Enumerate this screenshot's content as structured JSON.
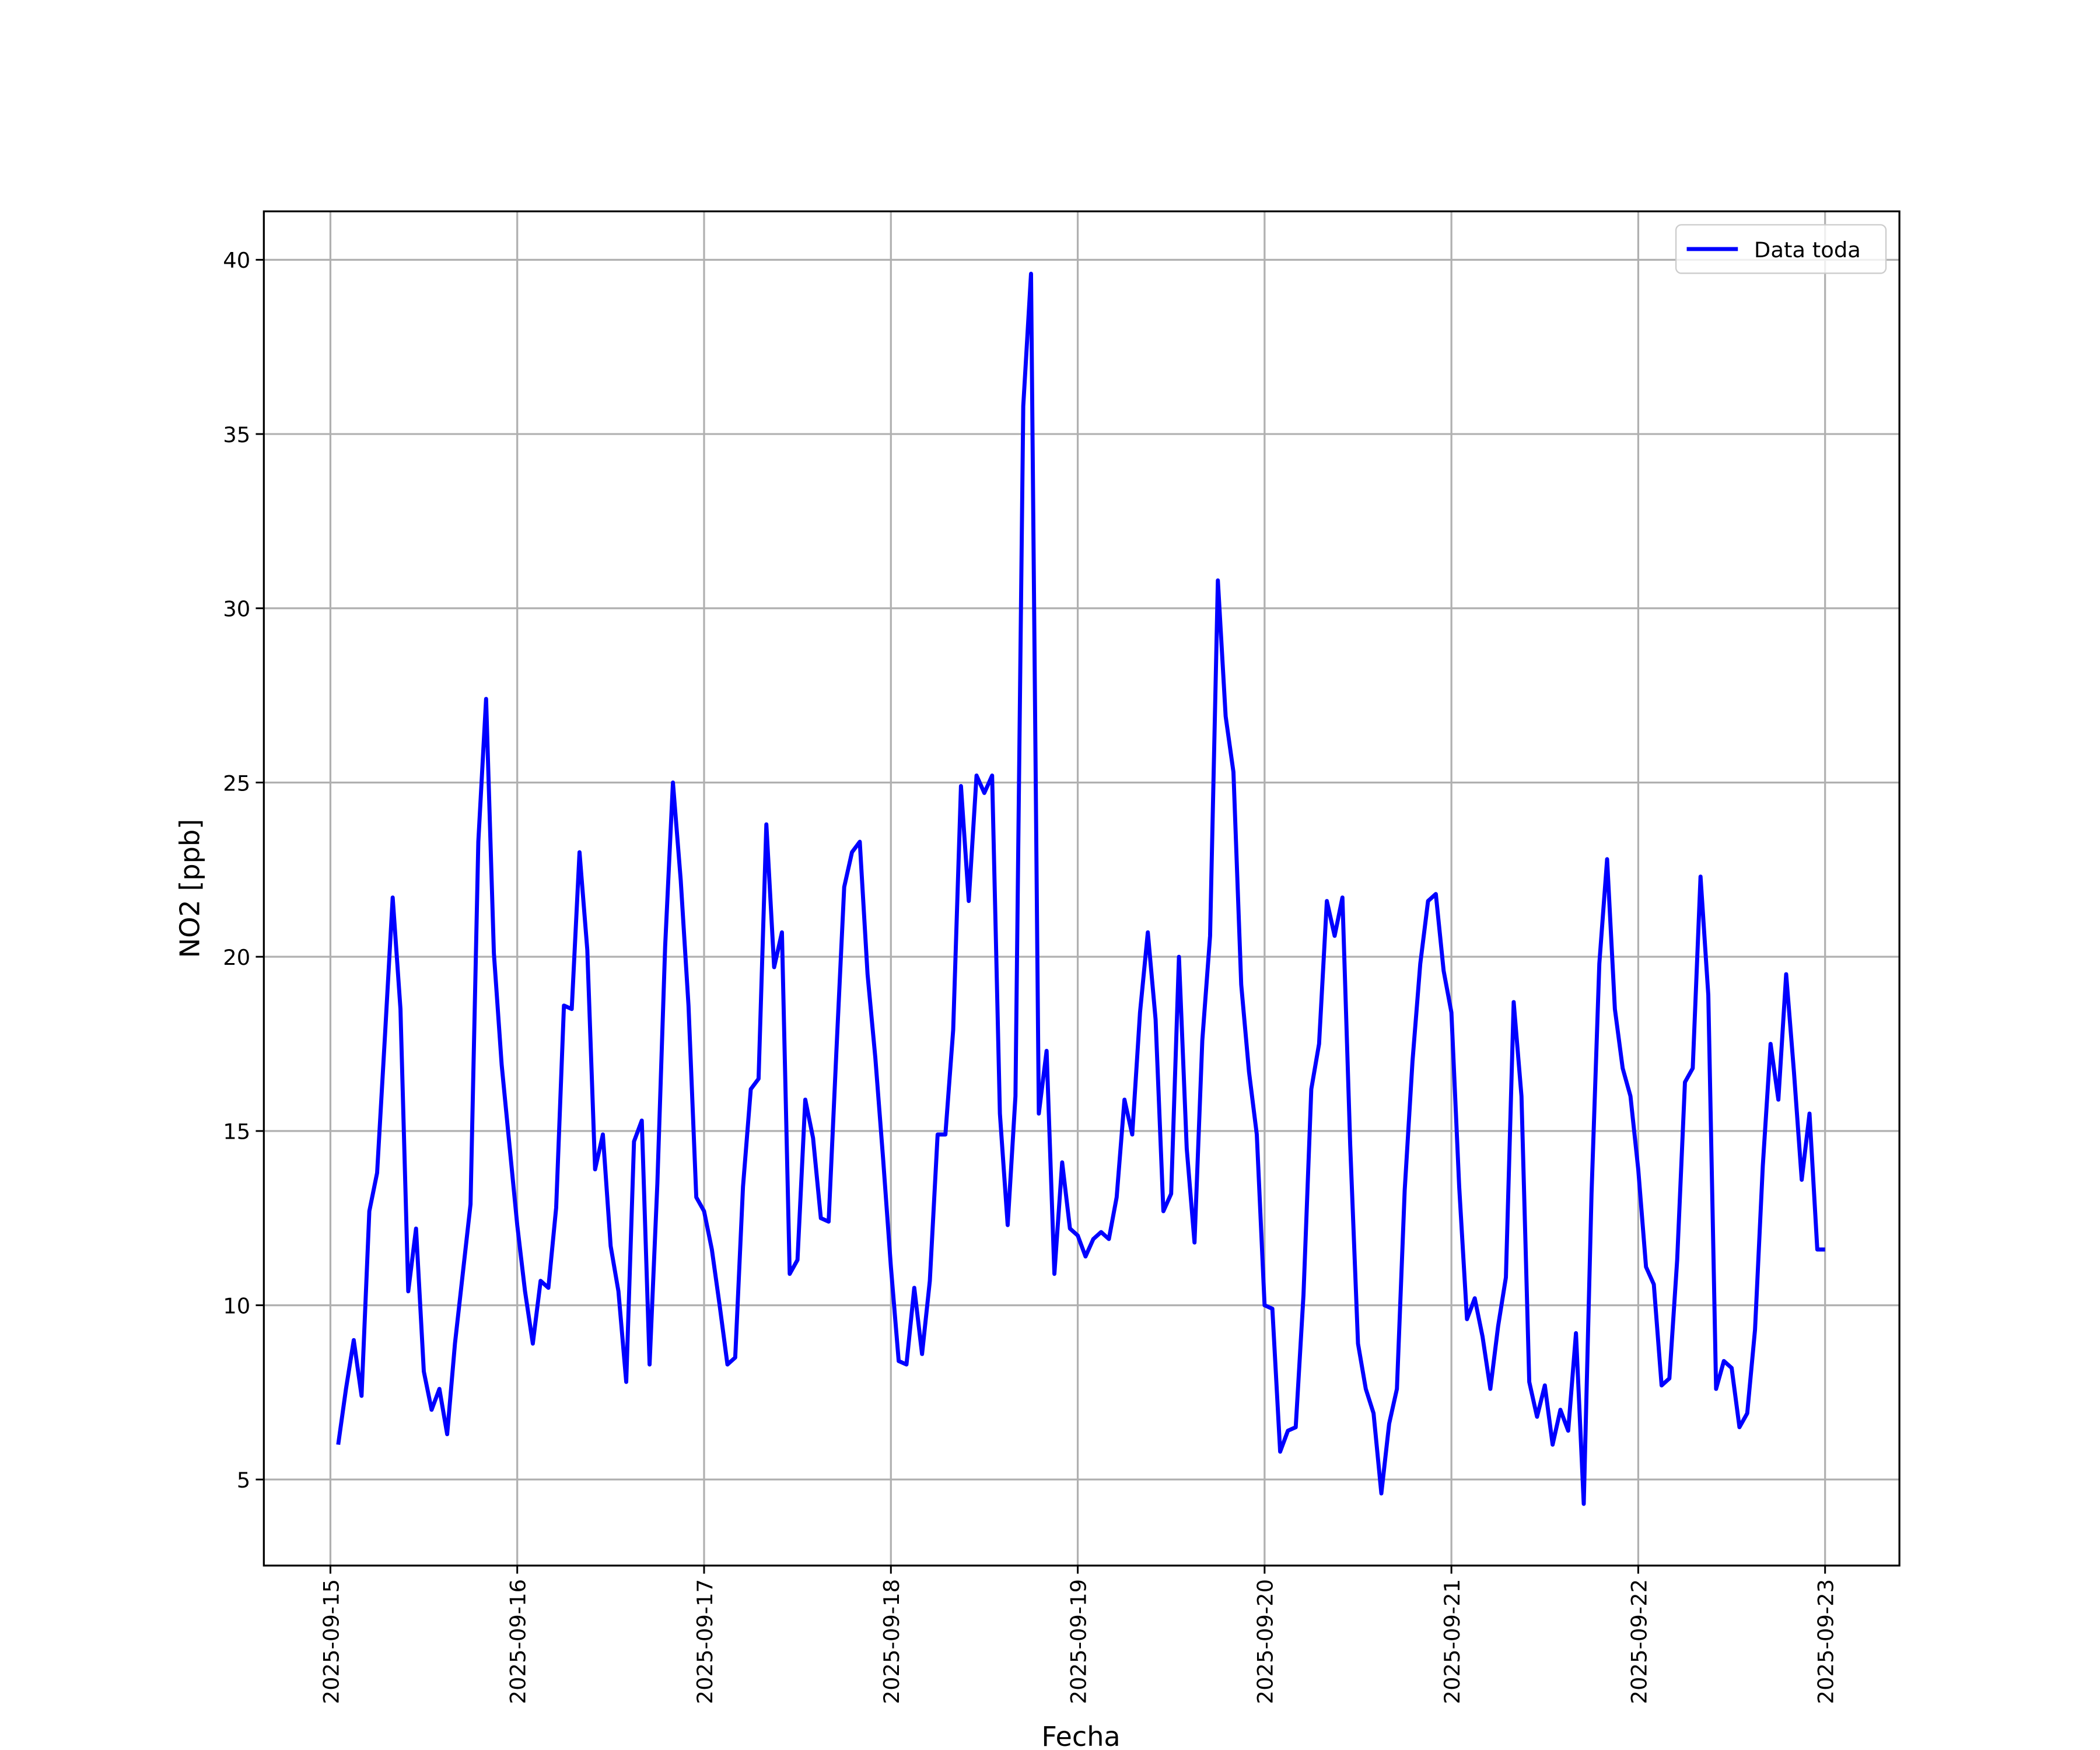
{
  "chart_data": {
    "type": "line",
    "xlabel": "Fecha",
    "ylabel": "NO2 [ppb]",
    "x": [
      "2025-09-15 01:00",
      "2025-09-15 02:00",
      "2025-09-15 03:00",
      "2025-09-15 04:00",
      "2025-09-15 05:00",
      "2025-09-15 06:00",
      "2025-09-15 07:00",
      "2025-09-15 08:00",
      "2025-09-15 09:00",
      "2025-09-15 10:00",
      "2025-09-15 11:00",
      "2025-09-15 12:00",
      "2025-09-15 13:00",
      "2025-09-15 14:00",
      "2025-09-15 15:00",
      "2025-09-15 16:00",
      "2025-09-15 17:00",
      "2025-09-15 18:00",
      "2025-09-15 19:00",
      "2025-09-15 20:00",
      "2025-09-15 21:00",
      "2025-09-15 22:00",
      "2025-09-15 23:00",
      "2025-09-16 00:00",
      "2025-09-16 01:00",
      "2025-09-16 02:00",
      "2025-09-16 03:00",
      "2025-09-16 04:00",
      "2025-09-16 05:00",
      "2025-09-16 06:00",
      "2025-09-16 07:00",
      "2025-09-16 08:00",
      "2025-09-16 09:00",
      "2025-09-16 10:00",
      "2025-09-16 11:00",
      "2025-09-16 12:00",
      "2025-09-16 13:00",
      "2025-09-16 14:00",
      "2025-09-16 15:00",
      "2025-09-16 16:00",
      "2025-09-16 17:00",
      "2025-09-16 18:00",
      "2025-09-16 19:00",
      "2025-09-16 20:00",
      "2025-09-16 21:00",
      "2025-09-16 22:00",
      "2025-09-16 23:00",
      "2025-09-17 00:00",
      "2025-09-17 01:00",
      "2025-09-17 02:00",
      "2025-09-17 03:00",
      "2025-09-17 04:00",
      "2025-09-17 05:00",
      "2025-09-17 06:00",
      "2025-09-17 07:00",
      "2025-09-17 08:00",
      "2025-09-17 09:00",
      "2025-09-17 10:00",
      "2025-09-17 11:00",
      "2025-09-17 12:00",
      "2025-09-17 13:00",
      "2025-09-17 14:00",
      "2025-09-17 15:00",
      "2025-09-17 16:00",
      "2025-09-17 17:00",
      "2025-09-17 18:00",
      "2025-09-17 19:00",
      "2025-09-17 20:00",
      "2025-09-17 21:00",
      "2025-09-17 22:00",
      "2025-09-17 23:00",
      "2025-09-18 00:00",
      "2025-09-18 01:00",
      "2025-09-18 02:00",
      "2025-09-18 03:00",
      "2025-09-18 04:00",
      "2025-09-18 05:00",
      "2025-09-18 06:00",
      "2025-09-18 07:00",
      "2025-09-18 08:00",
      "2025-09-18 09:00",
      "2025-09-18 10:00",
      "2025-09-18 11:00",
      "2025-09-18 12:00",
      "2025-09-18 13:00",
      "2025-09-18 14:00",
      "2025-09-18 15:00",
      "2025-09-18 16:00",
      "2025-09-18 17:00",
      "2025-09-18 18:00",
      "2025-09-18 19:00",
      "2025-09-18 20:00",
      "2025-09-18 21:00",
      "2025-09-18 22:00",
      "2025-09-18 23:00",
      "2025-09-19 00:00",
      "2025-09-19 01:00",
      "2025-09-19 02:00",
      "2025-09-19 03:00",
      "2025-09-19 04:00",
      "2025-09-19 05:00",
      "2025-09-19 06:00",
      "2025-09-19 07:00",
      "2025-09-19 08:00",
      "2025-09-19 09:00",
      "2025-09-19 10:00",
      "2025-09-19 11:00",
      "2025-09-19 12:00",
      "2025-09-19 13:00",
      "2025-09-19 14:00",
      "2025-09-19 15:00",
      "2025-09-19 16:00",
      "2025-09-19 17:00",
      "2025-09-19 18:00",
      "2025-09-19 19:00",
      "2025-09-19 20:00",
      "2025-09-19 21:00",
      "2025-09-19 22:00",
      "2025-09-19 23:00",
      "2025-09-20 00:00",
      "2025-09-20 01:00",
      "2025-09-20 02:00",
      "2025-09-20 03:00",
      "2025-09-20 04:00",
      "2025-09-20 05:00",
      "2025-09-20 06:00",
      "2025-09-20 07:00",
      "2025-09-20 08:00",
      "2025-09-20 09:00",
      "2025-09-20 10:00",
      "2025-09-20 11:00",
      "2025-09-20 12:00",
      "2025-09-20 13:00",
      "2025-09-20 14:00",
      "2025-09-20 15:00",
      "2025-09-20 16:00",
      "2025-09-20 17:00",
      "2025-09-20 18:00",
      "2025-09-20 19:00",
      "2025-09-20 20:00",
      "2025-09-20 21:00",
      "2025-09-20 22:00",
      "2025-09-20 23:00",
      "2025-09-21 00:00",
      "2025-09-21 01:00",
      "2025-09-21 02:00",
      "2025-09-21 03:00",
      "2025-09-21 04:00",
      "2025-09-21 05:00",
      "2025-09-21 06:00",
      "2025-09-21 07:00",
      "2025-09-21 08:00",
      "2025-09-21 09:00",
      "2025-09-21 10:00",
      "2025-09-21 11:00",
      "2025-09-21 12:00",
      "2025-09-21 13:00",
      "2025-09-21 14:00",
      "2025-09-21 15:00",
      "2025-09-21 16:00",
      "2025-09-21 17:00",
      "2025-09-21 18:00",
      "2025-09-21 19:00",
      "2025-09-21 20:00",
      "2025-09-21 21:00",
      "2025-09-21 22:00",
      "2025-09-21 23:00",
      "2025-09-22 00:00",
      "2025-09-22 01:00",
      "2025-09-22 02:00",
      "2025-09-22 03:00",
      "2025-09-22 04:00",
      "2025-09-22 05:00",
      "2025-09-22 06:00",
      "2025-09-22 07:00",
      "2025-09-22 08:00",
      "2025-09-22 09:00",
      "2025-09-22 10:00",
      "2025-09-22 11:00",
      "2025-09-22 12:00",
      "2025-09-22 13:00",
      "2025-09-22 14:00",
      "2025-09-22 15:00",
      "2025-09-22 16:00",
      "2025-09-22 17:00",
      "2025-09-22 18:00",
      "2025-09-22 19:00",
      "2025-09-22 20:00",
      "2025-09-22 21:00",
      "2025-09-22 22:00",
      "2025-09-22 23:00",
      "2025-09-23 00:00"
    ],
    "series": [
      {
        "name": "Data toda",
        "color": "#0000ff",
        "values": [
          6.0,
          7.6,
          9.0,
          7.4,
          12.7,
          13.8,
          17.7,
          21.7,
          18.5,
          10.4,
          12.2,
          8.1,
          7.0,
          7.6,
          6.3,
          8.9,
          10.9,
          12.9,
          23.3,
          27.4,
          20.1,
          16.9,
          14.6,
          12.3,
          10.4,
          8.9,
          10.7,
          10.5,
          12.8,
          18.6,
          18.5,
          23.0,
          20.2,
          13.9,
          14.9,
          11.7,
          10.4,
          7.8,
          14.7,
          15.3,
          8.3,
          13.5,
          20.3,
          25.0,
          22.2,
          18.6,
          13.1,
          12.7,
          11.6,
          10.0,
          8.3,
          8.5,
          13.4,
          16.2,
          16.5,
          23.8,
          19.7,
          20.7,
          10.9,
          11.3,
          15.9,
          14.8,
          12.5,
          12.4,
          17.3,
          22.0,
          23.0,
          23.3,
          19.5,
          17.1,
          14.2,
          11.1,
          8.4,
          8.3,
          10.5,
          8.6,
          10.7,
          14.9,
          14.9,
          17.9,
          24.9,
          21.6,
          25.2,
          24.7,
          25.2,
          15.5,
          12.3,
          16.0,
          35.8,
          39.6,
          15.5,
          17.3,
          10.9,
          14.1,
          12.2,
          12.0,
          11.4,
          11.9,
          12.1,
          11.9,
          13.1,
          15.9,
          14.9,
          18.4,
          20.7,
          18.2,
          12.7,
          13.2,
          20.0,
          14.5,
          11.8,
          17.6,
          20.6,
          30.8,
          26.9,
          25.3,
          19.2,
          16.7,
          14.9,
          10.0,
          9.9,
          5.8,
          6.4,
          6.5,
          10.3,
          16.2,
          17.5,
          21.6,
          20.6,
          21.7,
          14.6,
          8.9,
          7.6,
          6.9,
          4.6,
          6.6,
          7.6,
          13.3,
          17.0,
          19.8,
          21.6,
          21.8,
          19.6,
          18.4,
          13.4,
          9.6,
          10.2,
          9.1,
          7.6,
          9.4,
          10.8,
          18.7,
          16.0,
          7.8,
          6.8,
          7.7,
          6.0,
          7.0,
          6.4,
          9.2,
          4.3,
          13.2,
          19.8,
          22.8,
          18.5,
          16.8,
          16.0,
          13.9,
          11.1,
          10.6,
          7.7,
          7.9,
          11.3,
          16.4,
          16.8,
          22.3,
          18.9,
          7.6,
          8.4,
          8.2,
          6.5,
          6.9,
          9.3,
          14.0,
          17.5,
          15.9,
          19.5,
          16.7,
          13.6,
          15.5,
          11.6,
          11.6
        ]
      }
    ],
    "xlim": [
      "2025-09-14 15:27",
      "2025-09-23 09:33"
    ],
    "xticks": [
      "2025-09-15",
      "2025-09-16",
      "2025-09-17",
      "2025-09-18",
      "2025-09-19",
      "2025-09-20",
      "2025-09-21",
      "2025-09-22",
      "2025-09-23"
    ],
    "ylim": [
      2.53,
      41.39
    ],
    "yticks": [
      5,
      10,
      15,
      20,
      25,
      30,
      35,
      40
    ],
    "grid": true,
    "legend": "upper right"
  }
}
